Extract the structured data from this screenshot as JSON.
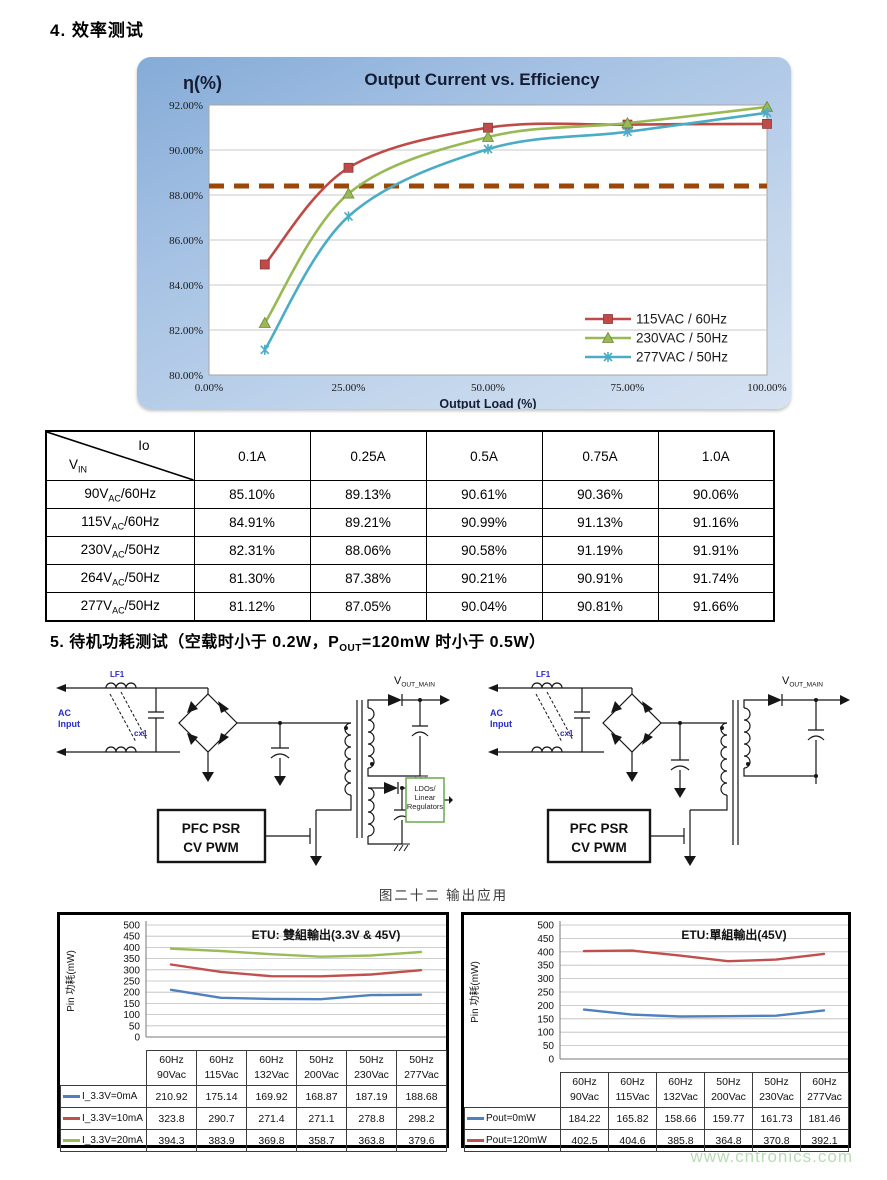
{
  "page": {
    "section4_title": "4. 效率测试",
    "section5_prefix": "5. 待机功耗测试（空载时小于 0.2W，P",
    "section5_sub": "OUT",
    "section5_suffix": "=120mW 时小于 0.5W）",
    "figure_caption": "图二十二 输出应用",
    "watermark": "www.cntronics.com"
  },
  "eff_table": {
    "corner_top": "Io",
    "corner_bottom_main": "V",
    "corner_bottom_sub": "IN",
    "col_headers": [
      "0.1A",
      "0.25A",
      "0.5A",
      "0.75A",
      "1.0A"
    ],
    "rows": [
      {
        "v": "90V",
        "sub": "AC",
        "rest": "/60Hz",
        "values": [
          "85.10%",
          "89.13%",
          "90.61%",
          "90.36%",
          "90.06%"
        ]
      },
      {
        "v": "115V",
        "sub": "AC",
        "rest": "/60Hz",
        "values": [
          "84.91%",
          "89.21%",
          "90.99%",
          "91.13%",
          "91.16%"
        ]
      },
      {
        "v": "230V",
        "sub": "AC",
        "rest": "/50Hz",
        "values": [
          "82.31%",
          "88.06%",
          "90.58%",
          "91.19%",
          "91.91%"
        ]
      },
      {
        "v": "264V",
        "sub": "AC",
        "rest": "/50Hz",
        "values": [
          "81.30%",
          "87.38%",
          "90.21%",
          "90.91%",
          "91.74%"
        ]
      },
      {
        "v": "277V",
        "sub": "AC",
        "rest": "/50Hz",
        "values": [
          "81.12%",
          "87.05%",
          "90.04%",
          "90.81%",
          "91.66%"
        ]
      }
    ]
  },
  "schematic": {
    "ac_line1": "AC",
    "ac_line2": "Input",
    "lf1": "LF1",
    "cx1": "cx1",
    "pwm_line1": "PFC PSR",
    "pwm_line2": "CV PWM",
    "vout_main": "V",
    "vout_sub": "OUT_MAIN",
    "ldo_line1": "LDOs/",
    "ldo_line2": "Linear",
    "ldo_line3": "Regulators"
  },
  "chart_data": [
    {
      "id": "efficiency",
      "type": "line",
      "title": "Output Current  vs.  Efficiency",
      "ylabel": "η(%)",
      "xlabel": "Output Load (%)",
      "xlim": [
        0,
        100
      ],
      "ylim": [
        80,
        92
      ],
      "x": [
        10,
        25,
        50,
        75,
        100
      ],
      "xticks": [
        "0.00%",
        "25.00%",
        "50.00%",
        "75.00%",
        "100.00%"
      ],
      "xtick_values": [
        0,
        25,
        50,
        75,
        100
      ],
      "yticks": [
        "80.00%",
        "82.00%",
        "84.00%",
        "86.00%",
        "88.00%",
        "90.00%",
        "92.00%"
      ],
      "grid": true,
      "legend_position": "inside bottom-right",
      "target_line": {
        "value": 88.4,
        "color": "#9c4708",
        "style": "dashed"
      },
      "series": [
        {
          "name": "115VAC / 60Hz",
          "color": "#be4b48",
          "marker": "square",
          "values": [
            84.91,
            89.21,
            90.99,
            91.13,
            91.16
          ]
        },
        {
          "name": "230VAC / 50Hz",
          "color": "#98b954",
          "marker": "triangle",
          "values": [
            82.31,
            88.06,
            90.58,
            91.19,
            91.91
          ]
        },
        {
          "name": "277VAC / 50Hz",
          "color": "#4aacc5",
          "marker": "star",
          "values": [
            81.12,
            87.05,
            90.04,
            90.81,
            91.66
          ]
        }
      ]
    },
    {
      "id": "etu-dual-output",
      "type": "line",
      "title": "ETU: 雙組輸出(3.3V & 45V)",
      "ylabel": "Pin 功耗(mW)",
      "ylim": [
        0,
        500
      ],
      "ytick_step": 50,
      "grid": true,
      "categories_line1": [
        "60Hz",
        "60Hz",
        "60Hz",
        "50Hz",
        "50Hz",
        "50Hz"
      ],
      "categories_line2": [
        "90Vac",
        "115Vac",
        "132Vac",
        "200Vac",
        "230Vac",
        "277Vac"
      ],
      "series": [
        {
          "name": "I_3.3V=0mA",
          "color": "#4f81bd",
          "values": [
            210.92,
            175.14,
            169.92,
            168.87,
            187.19,
            188.68
          ]
        },
        {
          "name": "I_3.3V=10mA",
          "color": "#c0504d",
          "values": [
            323.8,
            290.7,
            271.4,
            271.1,
            278.8,
            298.2
          ]
        },
        {
          "name": "I_3.3V=20mA",
          "color": "#9bbb59",
          "values": [
            394.3,
            383.9,
            369.8,
            358.7,
            363.8,
            379.6
          ]
        }
      ]
    },
    {
      "id": "etu-single-output",
      "type": "line",
      "title": "ETU:單組輸出(45V)",
      "ylabel": "Pin 功耗(mW)",
      "ylim": [
        0,
        500
      ],
      "ytick_step": 50,
      "grid": true,
      "categories_line1": [
        "60Hz",
        "60Hz",
        "60Hz",
        "50Hz",
        "50Hz",
        "60Hz"
      ],
      "categories_line2": [
        "90Vac",
        "115Vac",
        "132Vac",
        "200Vac",
        "230Vac",
        "277Vac"
      ],
      "series": [
        {
          "name": "Pout=0mW",
          "color": "#4f81bd",
          "values": [
            184.22,
            165.82,
            158.66,
            159.77,
            161.73,
            181.46
          ]
        },
        {
          "name": "Pout=120mW",
          "color": "#c0504d",
          "values": [
            402.5,
            404.6,
            385.8,
            364.8,
            370.8,
            392.1
          ]
        }
      ]
    }
  ]
}
